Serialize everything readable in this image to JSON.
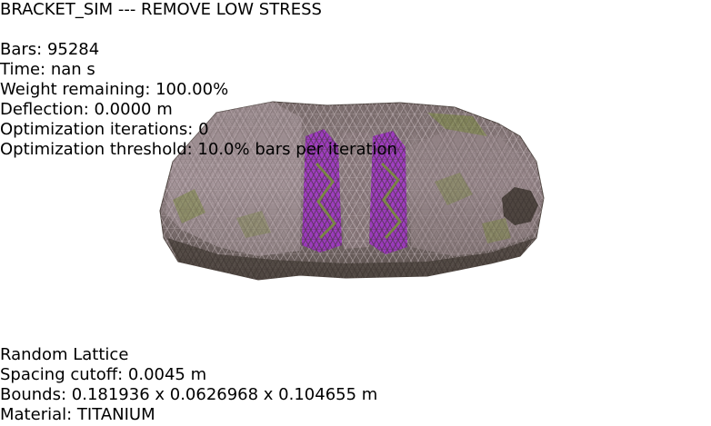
{
  "title": "BRACKET_SIM --- REMOVE LOW STRESS",
  "stats": {
    "bars": "Bars: 95284",
    "time": "Time: nan s",
    "weight": "Weight remaining: 100.00%",
    "deflection": "Deflection: 0.0000 m",
    "iterations": "Optimization iterations: 0",
    "threshold": "Optimization threshold: 10.0% bars per iteration"
  },
  "info": {
    "lattice": "Random Lattice",
    "spacing": "Spacing cutoff: 0.0045 m",
    "bounds": "Bounds: 0.181936 x 0.0626968 x 0.104655 m",
    "material": "Material: TITANIUM"
  },
  "colors": {
    "background": "#ffffff",
    "text": "#000000",
    "mesh_base": "#8a7a7e",
    "mesh_dark": "#4e4540",
    "mesh_light": "#b0a1a6",
    "mesh_green": "#7d8a46",
    "mesh_purple": "#a030c8"
  }
}
